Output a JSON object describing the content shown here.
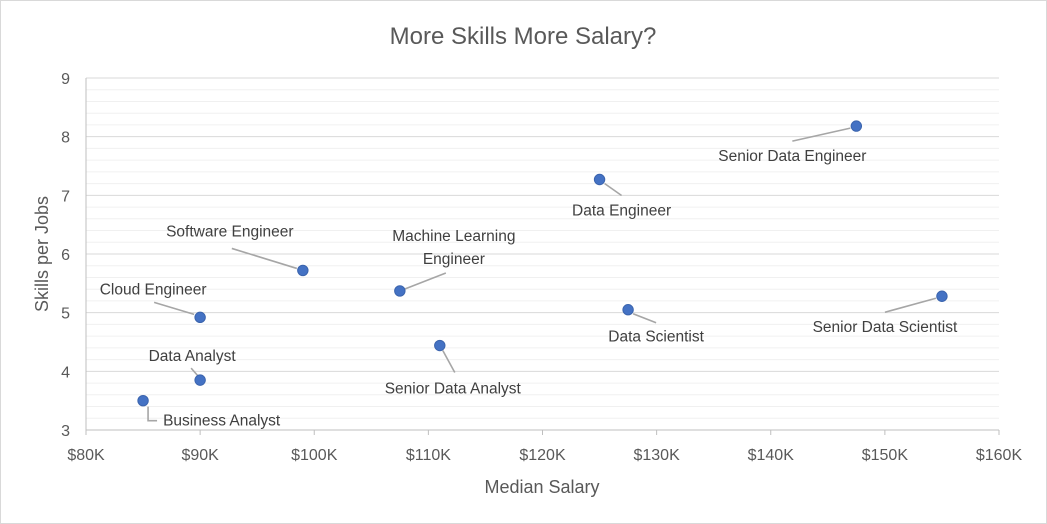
{
  "chart_data": {
    "type": "scatter",
    "title": "More Skills More Salary?",
    "xlabel": "Median Salary",
    "ylabel": "Skills per Jobs",
    "xlim": [
      80000,
      160000
    ],
    "ylim": [
      3,
      9
    ],
    "x_ticks": [
      80000,
      90000,
      100000,
      110000,
      120000,
      130000,
      140000,
      150000,
      160000
    ],
    "x_tick_labels": [
      "$80K",
      "$90K",
      "$100K",
      "$110K",
      "$120K",
      "$130K",
      "$140K",
      "$150K",
      "$160K"
    ],
    "y_ticks": [
      3,
      4,
      5,
      6,
      7,
      8,
      9
    ],
    "y_tick_labels": [
      "3",
      "4",
      "5",
      "6",
      "7",
      "8",
      "9"
    ],
    "grid": true,
    "minor_grid": true,
    "legend": "none",
    "marker_color": "#4472c4",
    "points": [
      {
        "label": "Business Analyst",
        "x": 85000,
        "y": 3.5
      },
      {
        "label": "Data Analyst",
        "x": 90000,
        "y": 3.85
      },
      {
        "label": "Cloud Engineer",
        "x": 90000,
        "y": 4.92
      },
      {
        "label": "Software Engineer",
        "x": 99000,
        "y": 5.72
      },
      {
        "label": "Machine Learning Engineer",
        "x": 107500,
        "y": 5.37
      },
      {
        "label": "Senior Data Analyst",
        "x": 111000,
        "y": 4.44
      },
      {
        "label": "Data Engineer",
        "x": 125000,
        "y": 7.27
      },
      {
        "label": "Data Scientist",
        "x": 127500,
        "y": 5.05
      },
      {
        "label": "Senior Data Engineer",
        "x": 147500,
        "y": 8.18
      },
      {
        "label": "Senior Data Scientist",
        "x": 155000,
        "y": 5.28
      }
    ]
  }
}
